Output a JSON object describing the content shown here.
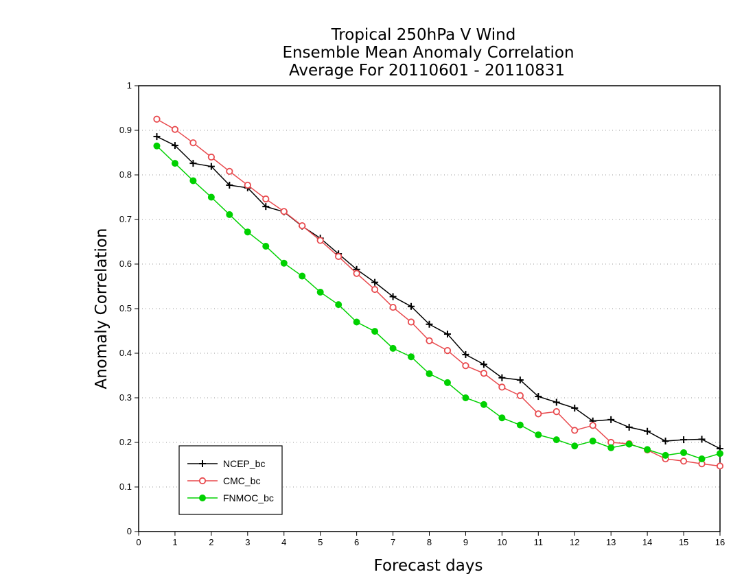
{
  "chart_data": {
    "type": "line",
    "title": [
      "Tropical 250hPa V Wind",
      "Ensemble Mean Anomaly Correlation",
      "Average For 20110601 - 20110831"
    ],
    "xlabel": "Forecast days",
    "ylabel": "Anomaly Correlation",
    "xlim": [
      0,
      16
    ],
    "ylim": [
      0,
      1
    ],
    "xticks": [
      "0",
      "1",
      "2",
      "3",
      "4",
      "5",
      "6",
      "7",
      "8",
      "9",
      "10",
      "11",
      "12",
      "13",
      "14",
      "15",
      "16"
    ],
    "yticks": [
      "0",
      "0.1",
      "0.2",
      "0.3",
      "0.4",
      "0.5",
      "0.6",
      "0.7",
      "0.8",
      "0.9",
      "1"
    ],
    "grid": "horizontal dotted",
    "legend_position": "bottom-left",
    "x": [
      0.5,
      1,
      1.5,
      2,
      2.5,
      3,
      3.5,
      4,
      4.5,
      5,
      5.5,
      6,
      6.5,
      7,
      7.5,
      8,
      8.5,
      9,
      9.5,
      10,
      10.5,
      11,
      11.5,
      12,
      12.5,
      13,
      13.5,
      14,
      14.5,
      15,
      15.5,
      16
    ],
    "series": [
      {
        "name": "NCEP_bc",
        "color": "#000000",
        "marker": "plus",
        "values": [
          0.886,
          0.866,
          0.826,
          0.819,
          0.777,
          0.771,
          0.729,
          0.717,
          0.685,
          0.658,
          0.623,
          0.588,
          0.559,
          0.527,
          0.505,
          0.465,
          0.443,
          0.397,
          0.375,
          0.345,
          0.34,
          0.303,
          0.29,
          0.277,
          0.248,
          0.251,
          0.234,
          0.225,
          0.203,
          0.206,
          0.207,
          0.186
        ]
      },
      {
        "name": "CMC_bc",
        "color": "#e8494d",
        "marker": "open-circle",
        "values": [
          0.925,
          0.902,
          0.872,
          0.84,
          0.808,
          0.777,
          0.746,
          0.718,
          0.686,
          0.653,
          0.617,
          0.579,
          0.543,
          0.503,
          0.47,
          0.428,
          0.406,
          0.372,
          0.355,
          0.324,
          0.305,
          0.264,
          0.269,
          0.227,
          0.238,
          0.2,
          0.197,
          0.183,
          0.163,
          0.158,
          0.152,
          0.147
        ]
      },
      {
        "name": "FNMOC_bc",
        "color": "#00d100",
        "marker": "filled-circle",
        "values": [
          0.865,
          0.826,
          0.787,
          0.75,
          0.711,
          0.672,
          0.64,
          0.602,
          0.573,
          0.537,
          0.509,
          0.47,
          0.449,
          0.411,
          0.392,
          0.354,
          0.334,
          0.3,
          0.285,
          0.255,
          0.239,
          0.217,
          0.206,
          0.192,
          0.203,
          0.188,
          0.196,
          0.184,
          0.171,
          0.177,
          0.163,
          0.175
        ]
      }
    ]
  }
}
